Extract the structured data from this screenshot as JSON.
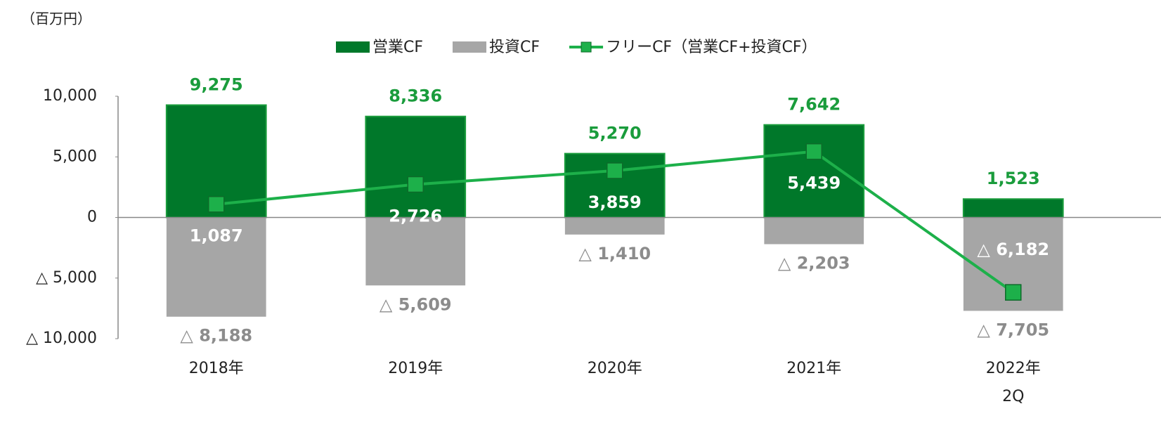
{
  "chart_data": {
    "type": "bar_line",
    "y_label": "（百万円）",
    "categories": [
      "2018年",
      "2019年",
      "2020年",
      "2021年",
      "2022年\n2Q"
    ],
    "series": [
      {
        "name": "営業CF",
        "type": "bar",
        "color": "#00782a",
        "values": [
          9275,
          8336,
          5270,
          7642,
          1523
        ],
        "value_labels": [
          "9,275",
          "8,336",
          "5,270",
          "7,642",
          "1,523"
        ]
      },
      {
        "name": "投資CF",
        "type": "bar",
        "color": "#a6a6a6",
        "values": [
          -8188,
          -5609,
          -1410,
          -2203,
          -7705
        ],
        "value_labels": [
          "△ 8,188",
          "△ 5,609",
          "△ 1,410",
          "△ 2,203",
          "△ 7,705"
        ]
      },
      {
        "name": "フリーCF（営業CF+投資CF）",
        "type": "line",
        "color": "#1db04a",
        "values": [
          1087,
          2726,
          3859,
          5439,
          -6182
        ],
        "value_labels": [
          "1,087",
          "2,726",
          "3,859",
          "5,439",
          "△ 6,182"
        ]
      }
    ],
    "ylim": [
      -10000,
      10000
    ],
    "yticks": [
      {
        "value": -10000,
        "label": "△ 10,000"
      },
      {
        "value": -5000,
        "label": "△ 5,000"
      },
      0,
      {
        "value": 5000,
        "label": "5,000"
      },
      {
        "value": 10000,
        "label": "10,000"
      }
    ]
  }
}
